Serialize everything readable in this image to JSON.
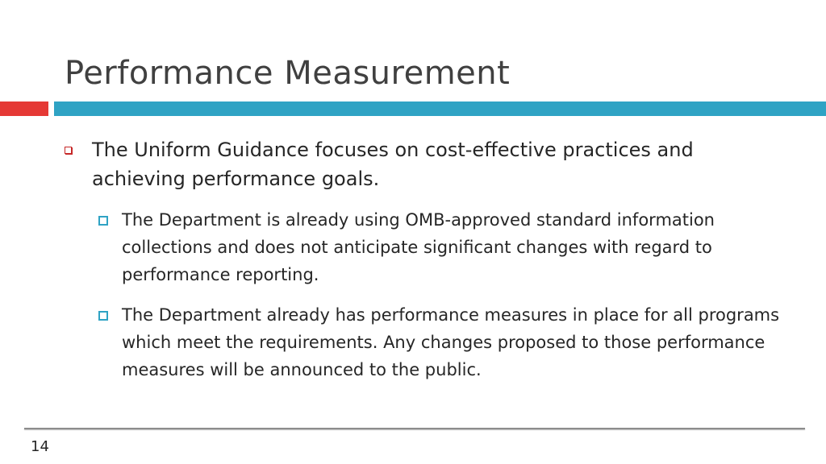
{
  "slide": {
    "title": "Performance Measurement",
    "bullets": [
      {
        "text": "The Uniform Guidance focuses on cost-effective practices and achieving performance goals.",
        "sub_bullets": [
          {
            "text": "The Department is already using OMB-approved standard information collections and does not anticipate significant changes with regard to performance reporting."
          },
          {
            "text": "The Department already has performance measures in place for all programs which meet the requirements.  Any changes proposed to those performance measures will be announced to the public."
          }
        ]
      }
    ],
    "page_number": "14"
  },
  "colors": {
    "accent_red": "#e53935",
    "accent_teal": "#2fa3c4",
    "title_text": "#404040",
    "body_text": "#262626"
  }
}
